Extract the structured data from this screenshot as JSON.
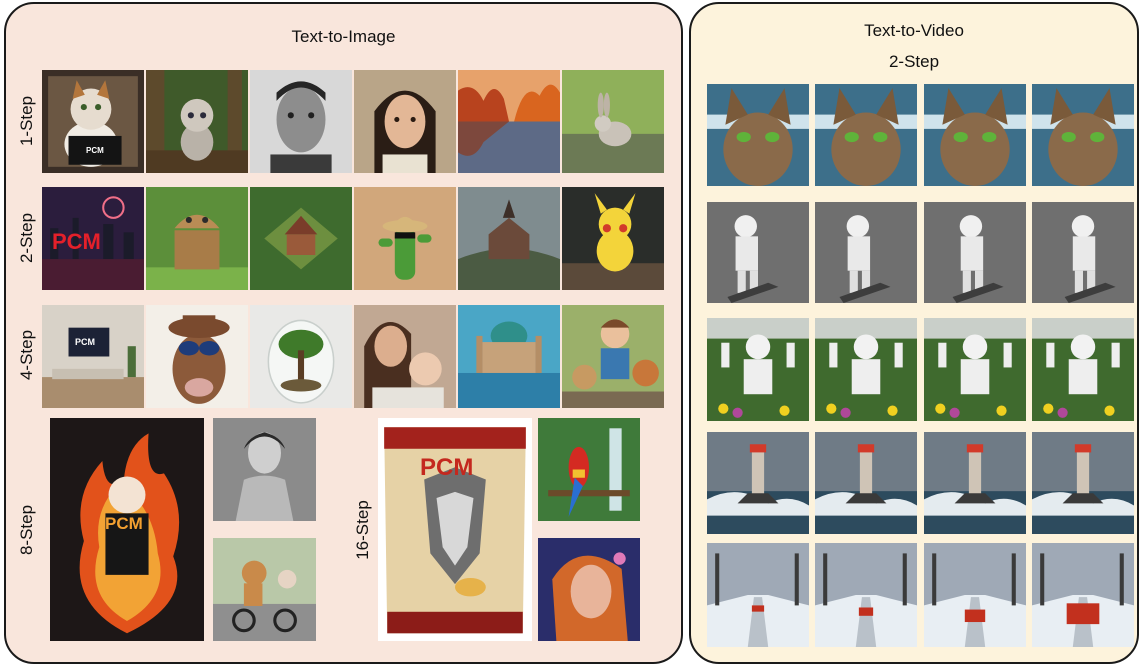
{
  "text_to_image": {
    "title": "Text-to-Image",
    "steps": {
      "s1": "1-Step",
      "s2": "2-Step",
      "s4": "4-Step",
      "s8": "8-Step",
      "s16": "16-Step"
    },
    "logo_text": "PCM"
  },
  "text_to_video": {
    "title": "Text-to-Video",
    "step": "2-Step"
  }
}
